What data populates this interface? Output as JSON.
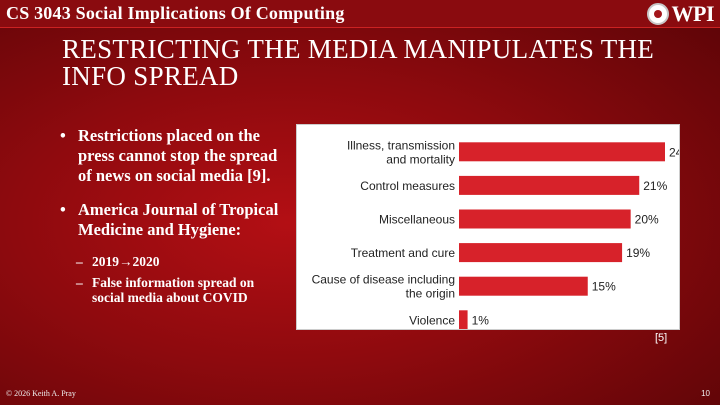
{
  "header": {
    "course_title": "CS 3043 Social Implications Of Computing",
    "logo_text": "WPI"
  },
  "slide": {
    "title": "RESTRICTING THE MEDIA MANIPULATES THE INFO SPREAD",
    "bullet_1": "Restrictions placed on the press cannot stop the spread of news on social media [9].",
    "bullet_2": "America Journal of Tropical Medicine and Hygiene:",
    "sub_bullet_1": "2019→2020",
    "sub_bullet_2": "False information spread on social media about COVID",
    "bullet_char": "•",
    "dash_char": "–"
  },
  "chart_data": {
    "type": "bar",
    "orientation": "horizontal",
    "categories": [
      [
        "Illness, transmission",
        "and mortality"
      ],
      [
        "Control measures"
      ],
      [
        "Miscellaneous"
      ],
      [
        "Treatment and cure"
      ],
      [
        "Cause of disease including",
        "the origin"
      ],
      [
        "Violence"
      ]
    ],
    "values": [
      24,
      21,
      20,
      19,
      15,
      1
    ],
    "value_suffix": "%",
    "bar_color": "#d7222a",
    "xlim": [
      0,
      24
    ],
    "grid": false,
    "legend": "none"
  },
  "citation": "[5]",
  "footer": {
    "copyright": "© 2026 Keith A. Pray",
    "page_number": "10"
  }
}
